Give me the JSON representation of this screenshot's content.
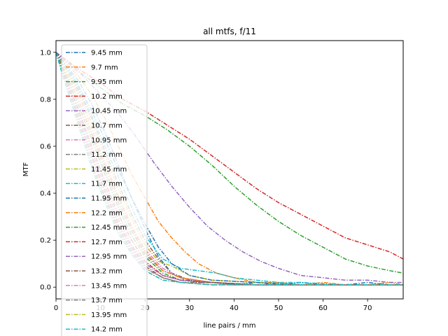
{
  "chart_data": {
    "type": "line",
    "title": "all mtfs, f/11",
    "xlabel": "line pairs / mm",
    "ylabel": "MTF",
    "xlim": [
      0,
      78
    ],
    "ylim": [
      -0.05,
      1.05
    ],
    "xticks": [
      0,
      10,
      20,
      30,
      40,
      50,
      60,
      70
    ],
    "yticks": [
      0.0,
      0.2,
      0.4,
      0.6,
      0.8,
      1.0
    ],
    "grid": false,
    "legend_position": "upper-left",
    "line_style": "dash-dot",
    "series": [
      {
        "name": "9.45 mm",
        "color": "#1f77b4",
        "x": [
          0,
          2,
          5,
          8,
          11,
          14,
          17,
          20,
          23,
          26,
          29,
          32,
          36,
          40,
          45,
          50,
          55,
          60,
          65,
          70,
          75,
          78
        ],
        "y": [
          1.0,
          0.95,
          0.88,
          0.78,
          0.66,
          0.52,
          0.38,
          0.25,
          0.13,
          0.06,
          0.03,
          0.02,
          0.02,
          0.01,
          0.02,
          0.01,
          0.02,
          0.01,
          0.01,
          0.02,
          0.01,
          0.01
        ]
      },
      {
        "name": "9.7 mm",
        "color": "#ff7f0e",
        "x": [
          0,
          2,
          5,
          8,
          11,
          14,
          17,
          20,
          23,
          26,
          29,
          32,
          36,
          40,
          45,
          50,
          55,
          60,
          65,
          70,
          75,
          78
        ],
        "y": [
          1.0,
          0.96,
          0.9,
          0.82,
          0.72,
          0.6,
          0.48,
          0.38,
          0.28,
          0.21,
          0.15,
          0.1,
          0.06,
          0.04,
          0.02,
          0.02,
          0.01,
          0.02,
          0.01,
          0.01,
          0.02,
          0.01
        ]
      },
      {
        "name": "9.95 mm",
        "color": "#2ca02c",
        "x": [
          0,
          5,
          10,
          15,
          20,
          25,
          30,
          35,
          40,
          45,
          50,
          55,
          60,
          65,
          70,
          75,
          78
        ],
        "y": [
          1.0,
          0.92,
          0.85,
          0.78,
          0.73,
          0.67,
          0.6,
          0.52,
          0.43,
          0.35,
          0.28,
          0.22,
          0.17,
          0.12,
          0.09,
          0.07,
          0.06
        ]
      },
      {
        "name": "10.2 mm",
        "color": "#d62728",
        "x": [
          0,
          5,
          10,
          15,
          20,
          25,
          30,
          35,
          40,
          45,
          50,
          55,
          60,
          65,
          70,
          75,
          78
        ],
        "y": [
          1.0,
          0.93,
          0.87,
          0.8,
          0.75,
          0.69,
          0.63,
          0.56,
          0.49,
          0.42,
          0.36,
          0.31,
          0.26,
          0.21,
          0.18,
          0.15,
          0.12
        ]
      },
      {
        "name": "10.45 mm",
        "color": "#9467bd",
        "x": [
          0,
          3,
          6,
          10,
          14,
          18,
          22,
          26,
          30,
          34,
          38,
          42,
          46,
          50,
          55,
          60,
          65,
          70,
          75,
          78
        ],
        "y": [
          1.0,
          0.95,
          0.9,
          0.82,
          0.74,
          0.64,
          0.53,
          0.43,
          0.34,
          0.26,
          0.2,
          0.15,
          0.11,
          0.08,
          0.05,
          0.04,
          0.03,
          0.03,
          0.02,
          0.02
        ]
      },
      {
        "name": "10.7 mm",
        "color": "#8c564b",
        "x": [
          0,
          2,
          5,
          8,
          11,
          14,
          17,
          20,
          23,
          26,
          30,
          35,
          40,
          50,
          60,
          70,
          78
        ],
        "y": [
          1.0,
          0.94,
          0.84,
          0.72,
          0.58,
          0.44,
          0.31,
          0.2,
          0.12,
          0.06,
          0.03,
          0.02,
          0.01,
          0.01,
          0.01,
          0.01,
          0.01
        ]
      },
      {
        "name": "10.95 mm",
        "color": "#e377c2",
        "x": [
          0,
          2,
          5,
          8,
          11,
          14,
          17,
          20,
          24,
          28,
          35,
          45,
          55,
          65,
          78
        ],
        "y": [
          1.0,
          0.93,
          0.82,
          0.68,
          0.53,
          0.39,
          0.26,
          0.16,
          0.08,
          0.04,
          0.02,
          0.01,
          0.01,
          0.01,
          0.01
        ]
      },
      {
        "name": "11.2 mm",
        "color": "#7f7f7f",
        "x": [
          0,
          2,
          5,
          8,
          11,
          14,
          17,
          20,
          24,
          28,
          35,
          45,
          55,
          65,
          78
        ],
        "y": [
          1.0,
          0.92,
          0.8,
          0.65,
          0.5,
          0.36,
          0.24,
          0.14,
          0.07,
          0.04,
          0.02,
          0.01,
          0.01,
          0.01,
          0.01
        ]
      },
      {
        "name": "11.45 mm",
        "color": "#bcbd22",
        "x": [
          0,
          2,
          5,
          8,
          11,
          14,
          17,
          20,
          23,
          26,
          30,
          35,
          45,
          55,
          65,
          78
        ],
        "y": [
          1.0,
          0.93,
          0.83,
          0.7,
          0.56,
          0.42,
          0.29,
          0.18,
          0.11,
          0.09,
          0.05,
          0.03,
          0.02,
          0.01,
          0.01,
          0.01
        ]
      },
      {
        "name": "11.7 mm",
        "color": "#17becf",
        "x": [
          0,
          2,
          5,
          8,
          11,
          14,
          17,
          20,
          24,
          28,
          32,
          36,
          40,
          45,
          50,
          55,
          65,
          78
        ],
        "y": [
          1.0,
          0.94,
          0.85,
          0.73,
          0.6,
          0.47,
          0.34,
          0.22,
          0.12,
          0.08,
          0.07,
          0.06,
          0.04,
          0.03,
          0.02,
          0.02,
          0.01,
          0.01
        ]
      },
      {
        "name": "11.95 mm",
        "color": "#1f77b4",
        "x": [
          0,
          2,
          5,
          8,
          11,
          14,
          17,
          20,
          23,
          26,
          30,
          35,
          45,
          55,
          65,
          78
        ],
        "y": [
          1.0,
          0.95,
          0.86,
          0.75,
          0.63,
          0.5,
          0.38,
          0.27,
          0.17,
          0.1,
          0.05,
          0.03,
          0.02,
          0.01,
          0.01,
          0.01
        ]
      },
      {
        "name": "12.2 mm",
        "color": "#ff7f0e",
        "x": [
          0,
          2,
          5,
          8,
          11,
          14,
          17,
          20,
          24,
          28,
          35,
          45,
          55,
          65,
          78
        ],
        "y": [
          1.0,
          0.92,
          0.8,
          0.66,
          0.52,
          0.38,
          0.25,
          0.15,
          0.07,
          0.04,
          0.02,
          0.01,
          0.01,
          0.01,
          0.01
        ]
      },
      {
        "name": "12.45 mm",
        "color": "#2ca02c",
        "x": [
          0,
          2,
          5,
          8,
          11,
          14,
          17,
          20,
          24,
          28,
          35,
          45,
          55,
          65,
          78
        ],
        "y": [
          1.0,
          0.91,
          0.78,
          0.63,
          0.48,
          0.34,
          0.22,
          0.13,
          0.06,
          0.03,
          0.02,
          0.01,
          0.01,
          0.01,
          0.01
        ]
      },
      {
        "name": "12.7 mm",
        "color": "#d62728",
        "x": [
          0,
          2,
          5,
          8,
          11,
          14,
          17,
          20,
          24,
          28,
          35,
          45,
          55,
          65,
          78
        ],
        "y": [
          1.0,
          0.9,
          0.76,
          0.6,
          0.45,
          0.31,
          0.2,
          0.11,
          0.05,
          0.03,
          0.02,
          0.01,
          0.01,
          0.01,
          0.01
        ]
      },
      {
        "name": "12.95 mm",
        "color": "#9467bd",
        "x": [
          0,
          2,
          5,
          8,
          11,
          14,
          17,
          20,
          24,
          28,
          35,
          45,
          55,
          65,
          78
        ],
        "y": [
          1.0,
          0.9,
          0.75,
          0.58,
          0.43,
          0.29,
          0.18,
          0.1,
          0.05,
          0.03,
          0.02,
          0.01,
          0.01,
          0.01,
          0.01
        ]
      },
      {
        "name": "13.2 mm",
        "color": "#8c564b",
        "x": [
          0,
          2,
          5,
          8,
          11,
          14,
          17,
          20,
          24,
          28,
          35,
          45,
          55,
          65,
          78
        ],
        "y": [
          1.0,
          0.89,
          0.73,
          0.56,
          0.41,
          0.27,
          0.17,
          0.09,
          0.04,
          0.02,
          0.02,
          0.01,
          0.01,
          0.01,
          0.01
        ]
      },
      {
        "name": "13.45 mm",
        "color": "#e377c2",
        "x": [
          0,
          2,
          5,
          8,
          11,
          14,
          17,
          20,
          24,
          28,
          35,
          45,
          55,
          65,
          78
        ],
        "y": [
          1.0,
          0.88,
          0.72,
          0.55,
          0.39,
          0.26,
          0.16,
          0.08,
          0.04,
          0.02,
          0.01,
          0.01,
          0.01,
          0.01,
          0.01
        ]
      },
      {
        "name": "13.7 mm",
        "color": "#7f7f7f",
        "x": [
          0,
          2,
          5,
          8,
          11,
          14,
          17,
          20,
          24,
          28,
          35,
          45,
          55,
          65,
          78
        ],
        "y": [
          1.0,
          0.88,
          0.71,
          0.53,
          0.38,
          0.25,
          0.15,
          0.08,
          0.04,
          0.02,
          0.01,
          0.01,
          0.01,
          0.01,
          0.01
        ]
      },
      {
        "name": "13.95 mm",
        "color": "#bcbd22",
        "x": [
          0,
          2,
          5,
          8,
          11,
          14,
          17,
          20,
          24,
          28,
          35,
          45,
          55,
          65,
          78
        ],
        "y": [
          1.0,
          0.87,
          0.7,
          0.52,
          0.37,
          0.24,
          0.14,
          0.07,
          0.03,
          0.02,
          0.01,
          0.01,
          0.01,
          0.01,
          0.01
        ]
      },
      {
        "name": "14.2 mm",
        "color": "#17becf",
        "x": [
          0,
          2,
          5,
          8,
          11,
          14,
          17,
          20,
          24,
          28,
          35,
          45,
          55,
          65,
          78
        ],
        "y": [
          1.0,
          0.87,
          0.69,
          0.51,
          0.36,
          0.23,
          0.14,
          0.07,
          0.03,
          0.02,
          0.01,
          0.01,
          0.01,
          0.01,
          0.01
        ]
      }
    ]
  }
}
